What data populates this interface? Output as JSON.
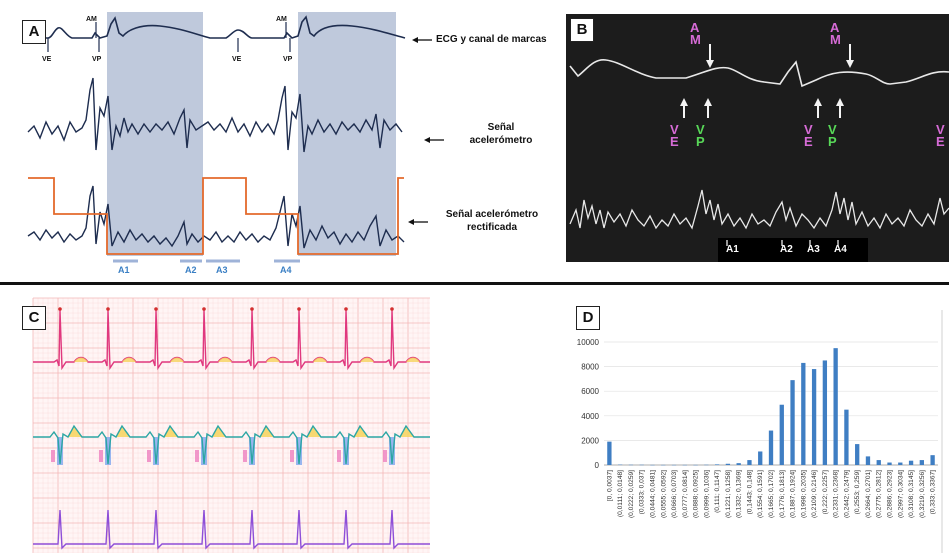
{
  "panels": {
    "a": "A",
    "b": "B",
    "c": "C",
    "d": "D"
  },
  "panel_a": {
    "marker_am": "AM",
    "marker_ve": "VE",
    "marker_vp": "VP",
    "label_ecg": "ECG y canal de marcas",
    "label_acc_1": "Señal",
    "label_acc_2": "acelerómetro",
    "label_rect_1": "Señal acelerómetro",
    "label_rect_2": "rectificada",
    "subintervals": [
      "A1",
      "A2",
      "A3",
      "A4"
    ]
  },
  "panel_b": {
    "marker_am_top": "A",
    "marker_am_bottom": "M",
    "marker_ve_top": "V",
    "marker_ve_bottom": "E",
    "marker_vp_top": "V",
    "marker_vp_bottom": "P",
    "subintervals": [
      "A1",
      "A2",
      "A3",
      "A4"
    ]
  },
  "chart_data": {
    "type": "bar",
    "ylim": [
      0,
      10000
    ],
    "yticks": [
      0,
      2000,
      4000,
      6000,
      8000,
      10000
    ],
    "categories": [
      "[0, 0,0037]",
      "(0,0111; 0,0148]",
      "(0,0222; 0,0259]",
      "(0,0333; 0,037]",
      "(0,0444; 0,0481]",
      "(0,0555; 0,0592]",
      "(0,0666; 0,0703]",
      "(0,0777; 0,0814]",
      "(0,0888; 0,0925]",
      "(0,0999; 0,1036]",
      "(0,111; 0,1147]",
      "(0,1221; 0,1258]",
      "(0,1332; 0,1369]",
      "(0,1443; 0,148]",
      "(0,1554; 0,1591]",
      "(0,1665; 0,1702]",
      "(0,1776; 0,1813]",
      "(0,1887; 0,1924]",
      "(0,1998; 0,2035]",
      "(0,2109; 0,2146]",
      "(0,222; 0,2257]",
      "(0,2331; 0,2368]",
      "(0,2442; 0,2479]",
      "(0,2553; 0,259]",
      "(0,2664; 0,2701]",
      "(0,2775; 0,2812]",
      "(0,2886; 0,2923]",
      "(0,2997; 0,3034]",
      "(0,3108; 0,3145]",
      "(0,3219; 0,3256]",
      "(0,333; 0,3367]"
    ],
    "values": [
      1900,
      30,
      20,
      20,
      10,
      10,
      10,
      10,
      10,
      20,
      50,
      100,
      150,
      400,
      1100,
      2800,
      4900,
      6900,
      8300,
      7800,
      8500,
      9500,
      4500,
      1700,
      700,
      400,
      200,
      200,
      350,
      400,
      800
    ]
  }
}
